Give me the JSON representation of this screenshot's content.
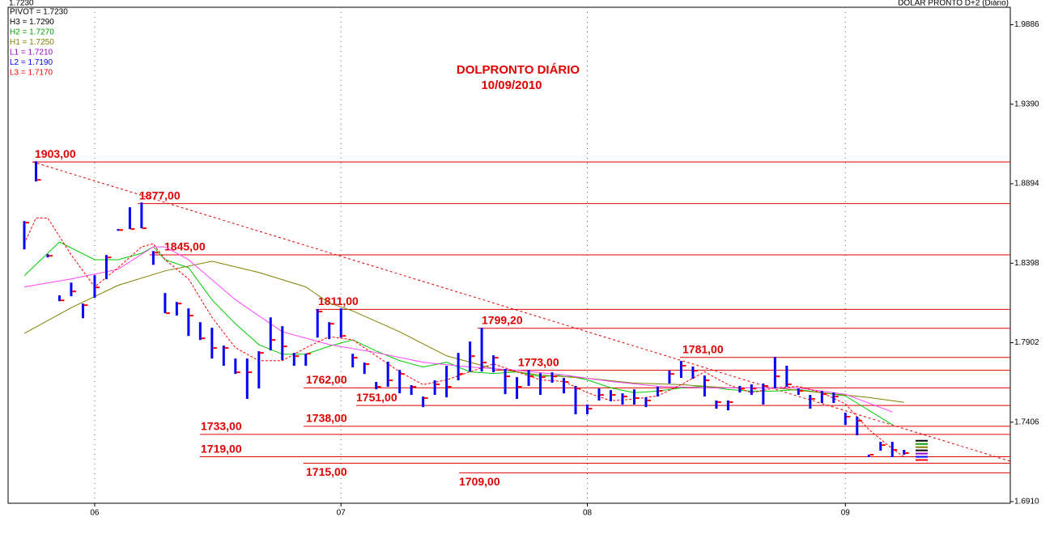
{
  "chart_data": {
    "type": "ohlc",
    "header_left": "1.7230",
    "header_right": "DOLAR PRONTO D+2 (Diário)",
    "title": "DOLPRONTO DIÁRIO",
    "subtitle": "10/09/2010",
    "ylim": [
      1.69,
      2.0
    ],
    "yticks": [
      {
        "value": 1.691,
        "label": "1.6910"
      },
      1.7406,
      1.7902,
      1.8398,
      1.8894,
      {
        "value": 1.939,
        "label": "1.9390"
      },
      1.9886
    ],
    "categories": [
      null,
      null,
      null,
      null,
      null,
      null,
      "06",
      null,
      null,
      null,
      null,
      null,
      null,
      null,
      null,
      null,
      null,
      null,
      null,
      null,
      null,
      null,
      null,
      null,
      null,
      null,
      null,
      "07",
      null,
      null,
      null,
      null,
      null,
      null,
      null,
      null,
      null,
      null,
      null,
      null,
      null,
      null,
      null,
      null,
      null,
      null,
      null,
      null,
      "08",
      null,
      null,
      null,
      null,
      null,
      null,
      null,
      null,
      null,
      null,
      null,
      null,
      null,
      null,
      null,
      null,
      null,
      null,
      null,
      null,
      null,
      "09",
      null,
      null,
      null,
      null,
      null
    ],
    "bar_color": "#0000ff",
    "tick_color": "#ff0000",
    "bars": {
      "high": [
        1.8661,
        1.9034,
        1.8454,
        1.8197,
        1.8277,
        1.8146,
        1.8323,
        1.8449,
        1.8611,
        1.8747,
        1.8777,
        1.8474,
        1.8212,
        1.8156,
        1.8116,
        1.803,
        1.7995,
        1.7884,
        1.7803,
        1.7803,
        1.7849,
        1.806,
        1.8005,
        1.7838,
        1.7833,
        1.8111,
        1.803,
        1.8116,
        1.7833,
        1.7778,
        1.7657,
        1.7783,
        1.7732,
        1.7637,
        1.7566,
        1.7667,
        1.7758,
        1.7838,
        1.7909,
        1.7995,
        1.7823,
        1.7738,
        1.7687,
        1.7732,
        1.7712,
        1.7717,
        1.7682,
        1.7632,
        1.7516,
        1.7616,
        1.7606,
        1.7586,
        1.7611,
        1.7561,
        1.7627,
        1.7727,
        1.7788,
        1.7753,
        1.7697,
        1.7541,
        1.7541,
        1.7632,
        1.7642,
        1.7647,
        1.7813,
        1.7758,
        1.7616,
        1.7576,
        1.7601,
        1.7591,
        1.7465,
        1.744,
        1.7203,
        1.7283,
        1.7283,
        1.7233
      ],
      "low": [
        1.8484,
        1.8908,
        1.8434,
        1.8161,
        1.8192,
        1.8055,
        1.8182,
        1.8298,
        1.86,
        1.8611,
        1.8616,
        1.8388,
        1.8086,
        1.8071,
        1.7944,
        1.7919,
        1.7803,
        1.7758,
        1.7707,
        1.7551,
        1.7616,
        1.7854,
        1.7793,
        1.7758,
        1.7758,
        1.7934,
        1.7924,
        1.7934,
        1.7748,
        1.7707,
        1.7611,
        1.7627,
        1.7586,
        1.7576,
        1.75,
        1.7576,
        1.7561,
        1.7667,
        1.7722,
        1.7722,
        1.7717,
        1.7581,
        1.7551,
        1.7632,
        1.7576,
        1.7652,
        1.7586,
        1.7455,
        1.7455,
        1.7541,
        1.7536,
        1.7516,
        1.7516,
        1.75,
        1.7566,
        1.7647,
        1.7682,
        1.7677,
        1.7566,
        1.749,
        1.748,
        1.7591,
        1.7576,
        1.7516,
        1.7616,
        1.7627,
        1.7576,
        1.749,
        1.7526,
        1.7526,
        1.7389,
        1.7324,
        1.7188,
        1.7228,
        1.7188,
        1.7203
      ],
      "close": [
        1.8651,
        1.8918,
        1.8444,
        1.8166,
        1.8222,
        1.8136,
        1.8247,
        1.8434,
        1.8605,
        1.8611,
        1.8616,
        1.8464,
        1.8086,
        1.8146,
        1.8071,
        1.7929,
        1.7869,
        1.7869,
        1.7717,
        1.7717,
        1.7838,
        1.7919,
        1.7879,
        1.7818,
        1.7833,
        1.8096,
        1.802,
        1.7944,
        1.7808,
        1.7768,
        1.7627,
        1.7667,
        1.7707,
        1.7627,
        1.7556,
        1.7642,
        1.7627,
        1.7707,
        1.7818,
        1.7778,
        1.7808,
        1.7692,
        1.7627,
        1.7692,
        1.7687,
        1.7692,
        1.7657,
        1.7616,
        1.749,
        1.7576,
        1.7576,
        1.7566,
        1.7556,
        1.7541,
        1.7601,
        1.7707,
        1.7758,
        1.7727,
        1.7667,
        1.7531,
        1.7531,
        1.7616,
        1.7616,
        1.7632,
        1.7692,
        1.7642,
        1.7601,
        1.7551,
        1.7581,
        1.7566,
        1.744,
        1.7415,
        1.7203,
        1.7263,
        1.7233,
        1.7213
      ]
    },
    "series": [
      {
        "color": "#00cc00",
        "dash": false,
        "x": [
          0,
          3,
          6,
          8,
          10,
          11,
          12,
          14,
          16,
          18,
          20,
          22,
          24,
          26,
          28,
          30,
          32,
          34,
          36,
          38,
          40,
          42,
          44,
          46,
          48,
          50,
          52,
          54,
          56,
          58,
          60,
          62,
          64,
          66,
          68,
          70,
          72,
          74
        ],
        "values": [
          1.832,
          1.853,
          1.842,
          1.842,
          1.846,
          1.85,
          1.842,
          1.837,
          1.817,
          1.802,
          1.789,
          1.783,
          1.783,
          1.788,
          1.792,
          1.785,
          1.779,
          1.775,
          1.778,
          1.772,
          1.771,
          1.772,
          1.769,
          1.77,
          1.767,
          1.762,
          1.759,
          1.76,
          1.762,
          1.763,
          1.761,
          1.76,
          1.76,
          1.761,
          1.759,
          1.757,
          1.748,
          1.739
        ]
      },
      {
        "color": "#808000",
        "dash": false,
        "x": [
          0,
          4,
          8,
          12,
          16,
          20,
          24,
          26,
          28,
          32,
          36,
          40,
          44,
          48,
          52,
          56,
          60,
          64,
          68,
          72,
          75
        ],
        "values": [
          1.796,
          1.812,
          1.826,
          1.835,
          1.841,
          1.834,
          1.825,
          1.815,
          1.81,
          1.797,
          1.782,
          1.774,
          1.77,
          1.768,
          1.765,
          1.764,
          1.762,
          1.762,
          1.759,
          1.756,
          1.753
        ]
      },
      {
        "color": "#ff44ff",
        "dash": false,
        "x": [
          0,
          4,
          8,
          11,
          12,
          14,
          18,
          22,
          26,
          30,
          34,
          38,
          42,
          46,
          50,
          54,
          58,
          62,
          66,
          70,
          74
        ],
        "values": [
          1.825,
          1.83,
          1.836,
          1.85,
          1.85,
          1.842,
          1.817,
          1.797,
          1.789,
          1.784,
          1.778,
          1.775,
          1.773,
          1.77,
          1.766,
          1.763,
          1.762,
          1.762,
          1.762,
          1.758,
          1.747
        ]
      },
      {
        "color": "#ff0000",
        "dash": true,
        "x": [
          0,
          1,
          2,
          4,
          6,
          8,
          10,
          11,
          12,
          14,
          16,
          18,
          20,
          22,
          24,
          26,
          28,
          30,
          32,
          34,
          36,
          38,
          40,
          42,
          44,
          46,
          48,
          50,
          52,
          54,
          56,
          58,
          60,
          62,
          64,
          66,
          68,
          70,
          72,
          74,
          75
        ],
        "values": [
          1.852,
          1.868,
          1.868,
          1.845,
          1.825,
          1.837,
          1.85,
          1.852,
          1.842,
          1.83,
          1.806,
          1.787,
          1.779,
          1.779,
          1.787,
          1.794,
          1.792,
          1.782,
          1.772,
          1.764,
          1.767,
          1.772,
          1.777,
          1.772,
          1.767,
          1.766,
          1.759,
          1.754,
          1.755,
          1.757,
          1.764,
          1.772,
          1.764,
          1.759,
          1.762,
          1.763,
          1.759,
          1.752,
          1.736,
          1.724,
          1.719
        ]
      }
    ],
    "levels": [
      {
        "value": 1.903,
        "label": "1903,00"
      },
      {
        "value": 1.877,
        "label": "1877,00"
      },
      {
        "value": 1.845,
        "label": "1845,00"
      },
      {
        "value": 1.811,
        "label": "1811,00"
      },
      {
        "value": 1.7992,
        "label": "1799,20"
      },
      {
        "value": 1.781,
        "label": "1781,00"
      },
      {
        "value": 1.773,
        "label": "1773,00"
      },
      {
        "value": 1.762,
        "label": "1762,00"
      },
      {
        "value": 1.751,
        "label": "1751,00"
      },
      {
        "value": 1.738,
        "label": "1738,00"
      },
      {
        "value": 1.733,
        "label": "1733,00"
      },
      {
        "value": 1.719,
        "label": "1719,00"
      },
      {
        "value": 1.715,
        "label": "1715,00"
      },
      {
        "value": 1.709,
        "label": "1709,00"
      }
    ],
    "level_color": "#e00000",
    "pivots": [
      {
        "label": "PIVOT = 1.7230",
        "value": 1.723,
        "color": "#000000"
      },
      {
        "label": "H3 = 1.7290",
        "value": 1.729,
        "color": "#000000"
      },
      {
        "label": "H2 = 1.7270",
        "value": 1.727,
        "color": "#00a000"
      },
      {
        "label": "H1 = 1.7250",
        "value": 1.725,
        "color": "#808000"
      },
      {
        "label": "L1 = 1.7210",
        "value": 1.721,
        "color": "#9900cc"
      },
      {
        "label": "L2 = 1.7190",
        "value": 1.719,
        "color": "#0000ff"
      },
      {
        "label": "L3 = 1.7170",
        "value": 1.717,
        "color": "#ff0000"
      }
    ]
  }
}
